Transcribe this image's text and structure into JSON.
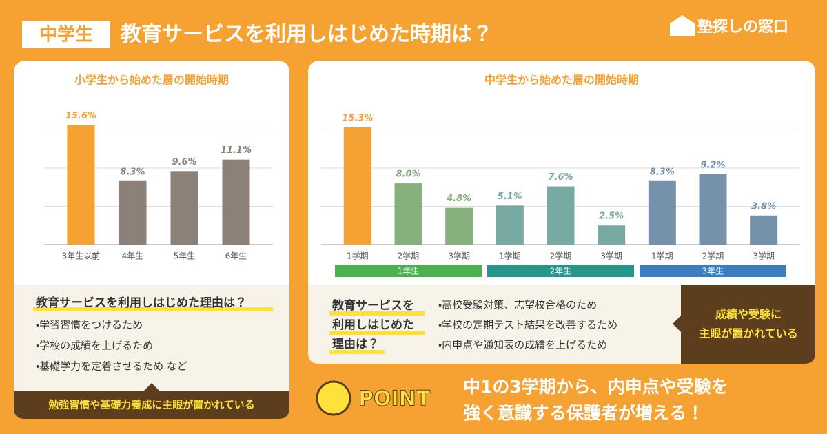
{
  "header": {
    "badge": "中学生",
    "title": "教育サービスを利用しはじめた時期は？",
    "logo": "塾探しの窓口"
  },
  "chart_data": [
    {
      "type": "bar",
      "title": "小学生から始めた層の開始時期",
      "categories": [
        "3年生以前",
        "4年生",
        "5年生",
        "6年生"
      ],
      "values": [
        15.6,
        8.3,
        9.6,
        11.1
      ],
      "value_labels": [
        "15.6%",
        "8.3%",
        "9.6%",
        "11.1%"
      ],
      "colors": [
        "#f5a233",
        "#8c8078",
        "#8c8078",
        "#8c8078"
      ],
      "ylim": [
        0,
        18
      ],
      "yticks": [
        0,
        5,
        10,
        15
      ],
      "grid": true
    },
    {
      "type": "grouped_bar",
      "title": "中学生から始めた層の開始時期",
      "groups": [
        {
          "name": "1年生",
          "color": "#4caf50",
          "categories": [
            "1学期",
            "2学期",
            "3学期"
          ],
          "values": [
            15.3,
            8.0,
            4.8
          ],
          "value_labels": [
            "15.3%",
            "8.0%",
            "4.8%"
          ],
          "colors": [
            "#f5a233",
            "#86b07c",
            "#86b07c"
          ]
        },
        {
          "name": "2年生",
          "color": "#26968a",
          "categories": [
            "1学期",
            "2学期",
            "3学期"
          ],
          "values": [
            5.1,
            7.6,
            2.5
          ],
          "value_labels": [
            "5.1%",
            "7.6%",
            "2.5%"
          ],
          "colors": [
            "#77aaa2",
            "#77aaa2",
            "#77aaa2"
          ]
        },
        {
          "name": "3年生",
          "color": "#3a7dc0",
          "categories": [
            "1学期",
            "2学期",
            "3学期"
          ],
          "values": [
            8.3,
            9.2,
            3.8
          ],
          "value_labels": [
            "8.3%",
            "9.2%",
            "3.8%"
          ],
          "colors": [
            "#7591ab",
            "#7591ab",
            "#7591ab"
          ]
        }
      ],
      "ylim": [
        0,
        18
      ],
      "yticks": [
        0,
        5,
        10,
        15
      ],
      "grid": true
    }
  ],
  "left_reasons": {
    "title": "教育サービスを利用しはじめた理由は？",
    "items": [
      "・学習習慣をつけるため",
      "・学校の成績を上げるため",
      "・基礎学力を定着させるため など"
    ],
    "conclusion": "勉強習慣や基礎力養成に主眼が置かれている"
  },
  "right_reasons": {
    "title": [
      "教育サービスを",
      "利用しはじめた",
      "理由は？"
    ],
    "items": [
      "・高校受験対策、志望校合格のため",
      "・学校の定期テスト結果を改善するため",
      "・内申点や通知表の成績を上げるため"
    ],
    "conclusion": [
      "成績や受験に",
      "主眼が置かれている"
    ]
  },
  "point": {
    "label": "POINT",
    "text": [
      "中1の3学期から、内申点や受験を",
      "強く意識する保護者が増える！"
    ]
  }
}
